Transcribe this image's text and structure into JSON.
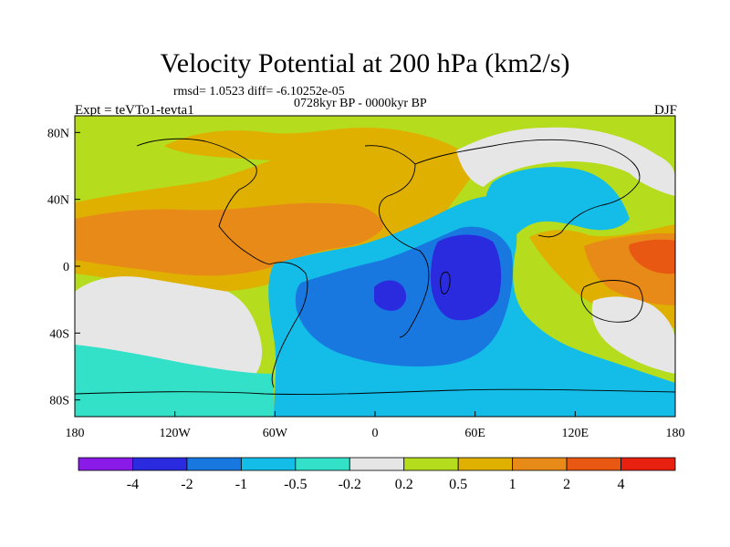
{
  "title": "Velocity Potential at 200 hPa (km2/s)",
  "rmsd_text": "rmsd= 1.0523 diff= -6.10252e-05",
  "period_text": "0728kyr BP - 0000kyr BP",
  "experiment_text": "Expt = teVTo1-tevta1",
  "season": "DJF",
  "map": {
    "x_ticks": [
      "180",
      "120W",
      "60W",
      "0",
      "60E",
      "120E",
      "180"
    ],
    "y_ticks": [
      "80N",
      "40N",
      "0",
      "40S",
      "80S"
    ]
  },
  "colorbar": {
    "labels": [
      "-4",
      "-2",
      "-1",
      "-0.5",
      "-0.2",
      "0.2",
      "0.5",
      "1",
      "2",
      "4"
    ],
    "colors": [
      "#8a1ae8",
      "#2a2adf",
      "#1878e0",
      "#13bde8",
      "#33e0c8",
      "#e6e6e6",
      "#b6dc1e",
      "#e0b000",
      "#e88a18",
      "#e85812",
      "#e82010"
    ]
  }
}
